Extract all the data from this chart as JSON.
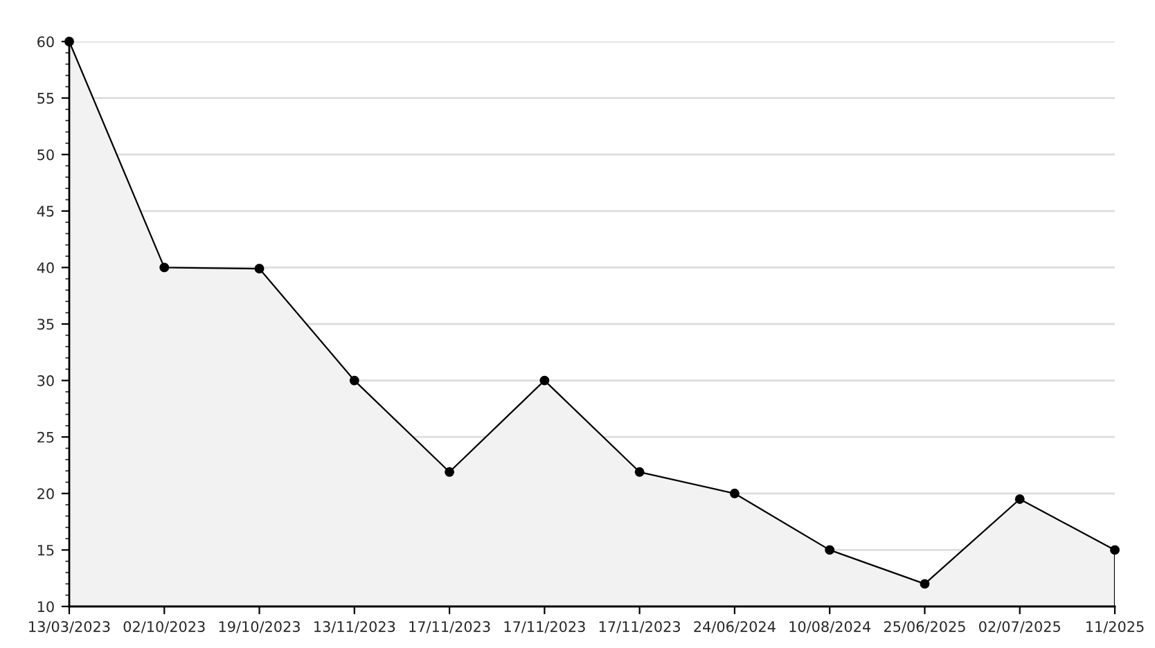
{
  "chart_data": {
    "type": "area",
    "categories": [
      "13/03/2023",
      "02/10/2023",
      "19/10/2023",
      "13/11/2023",
      "17/11/2023",
      "17/11/2023",
      "17/11/2023",
      "24/06/2024",
      "10/08/2024",
      "25/06/2025",
      "02/07/2025",
      "11/2025"
    ],
    "series": [
      {
        "color": "#f2f2f2",
        "values": [
          60,
          40,
          39.9,
          30,
          21.9,
          30,
          21.9,
          20,
          15,
          12,
          19.5,
          15
        ]
      }
    ],
    "ylim": [
      10,
      60
    ],
    "yticks": [
      10,
      15,
      20,
      25,
      30,
      35,
      40,
      45,
      50,
      55,
      60
    ],
    "grid": "y",
    "legend": false,
    "marker": "circle",
    "line_style": "solid"
  }
}
